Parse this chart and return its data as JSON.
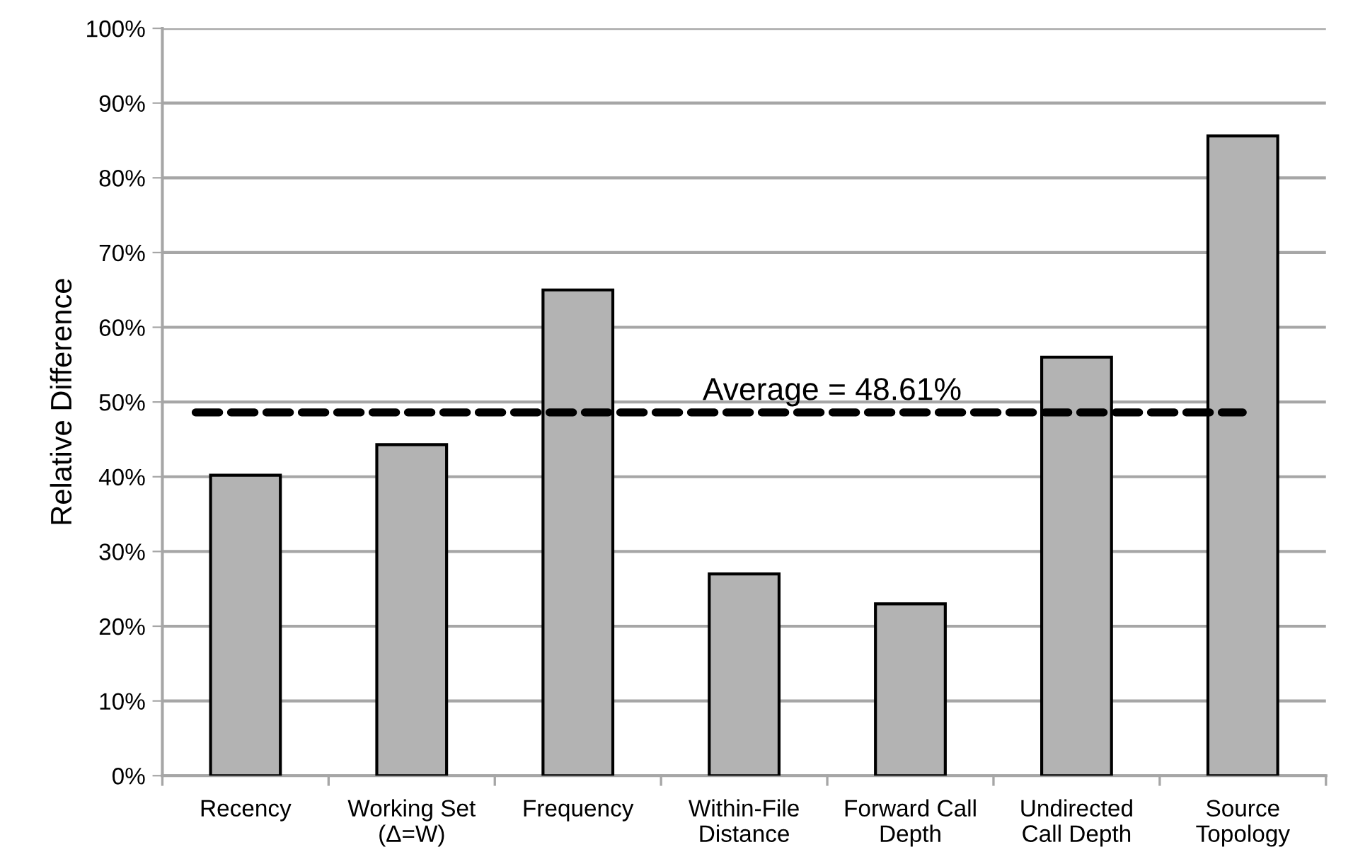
{
  "chart_data": {
    "type": "bar",
    "ylabel": "Relative Difference",
    "categories": [
      "Recency",
      "Working Set\n(Δ=W)",
      "Frequency",
      "Within-File\nDistance",
      "Forward Call\nDepth",
      "Undirected\nCall Depth",
      "Source\nTopology"
    ],
    "values": [
      40.2,
      44.3,
      65.0,
      27.0,
      23.0,
      56.0,
      85.6
    ],
    "color": "#b3b3b3",
    "ylim": [
      0,
      100
    ],
    "yticks": [
      {
        "value": 0,
        "label": "0%"
      },
      {
        "value": 10,
        "label": "10%"
      },
      {
        "value": 20,
        "label": "20%"
      },
      {
        "value": 30,
        "label": "30%"
      },
      {
        "value": 40,
        "label": "40%"
      },
      {
        "value": 50,
        "label": "50%"
      },
      {
        "value": 60,
        "label": "60%"
      },
      {
        "value": 70,
        "label": "70%"
      },
      {
        "value": 80,
        "label": "80%"
      },
      {
        "value": 90,
        "label": "90%"
      },
      {
        "value": 100,
        "label": "100%"
      }
    ],
    "grid": "y",
    "legend": false,
    "ref_lines": [
      {
        "axis": "y",
        "value": 48.61,
        "label": "Average = 48.61%",
        "color": "#000000",
        "line_style": "dashed"
      }
    ]
  }
}
